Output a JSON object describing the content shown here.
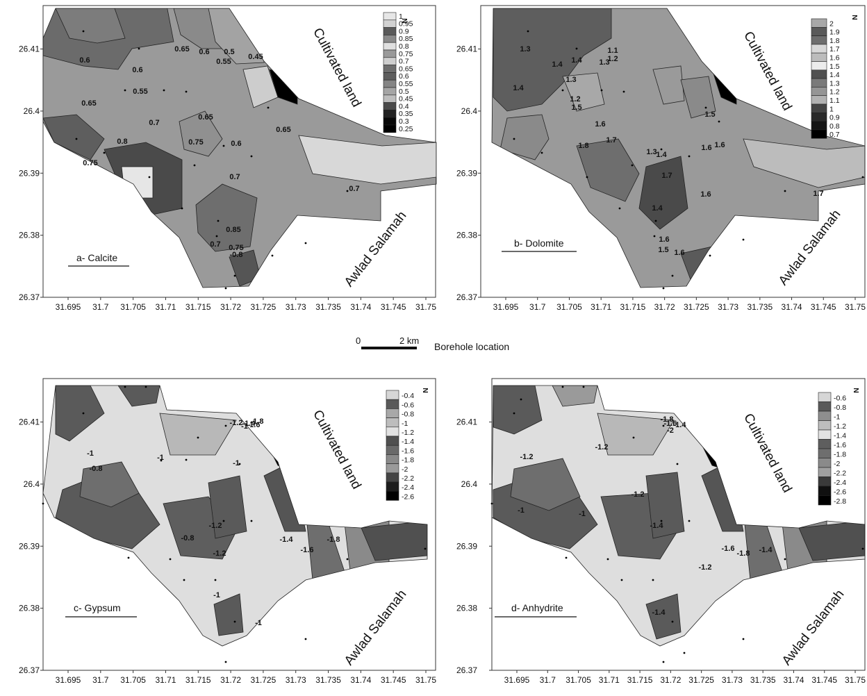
{
  "panels": [
    {
      "title": "a- Calcite",
      "legend": [
        "1",
        "0.95",
        "0.9",
        "0.85",
        "0.8",
        "0.75",
        "0.7",
        "0.65",
        "0.6",
        "0.55",
        "0.5",
        "0.45",
        "0.4",
        "0.35",
        "0.3",
        "0.25"
      ],
      "legend_colors": [
        "#e6e6e6",
        "#d2d2d2",
        "#5a5a5a",
        "#8a8a8a",
        "#e0e0e0",
        "#9a9a9a",
        "#cfcfcf",
        "#6e6e6e",
        "#5e5e5e",
        "#858585",
        "#a5a5a5",
        "#bdbdbd",
        "#4a4a4a",
        "#222222",
        "#080808",
        "#000000"
      ],
      "contour_labels": [
        "0.6",
        "0.6",
        "0.55",
        "0.65",
        "0.65",
        "0.6",
        "0.5",
        "0.55",
        "0.45",
        "0.7",
        "0.8",
        "0.75",
        "0.65",
        "0.6",
        "0.7",
        "0.65",
        "0.75",
        "0.7",
        "0.85",
        "0.7",
        "0.75",
        "-0.8"
      ]
    },
    {
      "title": "b- Dolomite",
      "legend": [
        "2",
        "1.9",
        "1.8",
        "1.7",
        "1.6",
        "1.5",
        "1.4",
        "1.3",
        "1.2",
        "1.1",
        "1",
        "0.9",
        "0.8",
        "0.7"
      ],
      "legend_colors": [
        "#a8a8a8",
        "#5a5a5a",
        "#6e6e6e",
        "#d8d8d8",
        "#bcbcbc",
        "#ececec",
        "#505050",
        "#7a7a7a",
        "#959595",
        "#b2b2b2",
        "#444444",
        "#2a2a2a",
        "#151515",
        "#000000"
      ],
      "contour_labels": [
        "1.3",
        "1.4",
        "1.3",
        "1.4",
        "1.2",
        "1.4",
        "1.3",
        "1.2",
        "1.1",
        "1.5",
        "1.6",
        "1.8",
        "1.7",
        "1.6",
        "1.4",
        "1.3",
        "1.6",
        "1.5",
        "1.7",
        "1.6",
        "1.4",
        "1.6",
        "1.5",
        "1.6",
        "1.7"
      ]
    },
    {
      "title": "c- Gypsum",
      "legend": [
        "-0.4",
        "-0.6",
        "-0.8",
        "-1",
        "-1.2",
        "-1.4",
        "-1.6",
        "-1.8",
        "-2",
        "-2.2",
        "-2.4",
        "-2.6"
      ],
      "legend_colors": [
        "#d6d6d6",
        "#5a5a5a",
        "#a8a8a8",
        "#bdbdbd",
        "#e2e2e2",
        "#505050",
        "#6a6a6a",
        "#8a8a8a",
        "#9a9a9a",
        "#444444",
        "#1c1c1c",
        "#000000"
      ],
      "contour_labels": [
        "-1",
        "-0.8",
        "-1",
        "-1",
        "-1.2",
        "-1.4",
        "-1.6",
        "-1.8",
        "-1.2",
        "-1",
        "-0.8",
        "-1.2",
        "-1.4",
        "-1.6",
        "-1.8",
        "-1",
        "-1"
      ]
    },
    {
      "title": "d- Anhydrite",
      "legend": [
        "-0.6",
        "-0.8",
        "-1",
        "-1.2",
        "-1.4",
        "-1.6",
        "-1.8",
        "-2",
        "-2.2",
        "-2.4",
        "-2.6",
        "-2.8"
      ],
      "legend_colors": [
        "#d6d6d6",
        "#5a5a5a",
        "#8e8e8e",
        "#bdbdbd",
        "#e2e2e2",
        "#5e5e5e",
        "#6e6e6e",
        "#8a8a8a",
        "#a0a0a0",
        "#3a3a3a",
        "#101010",
        "#000000"
      ],
      "contour_labels": [
        "-1.2",
        "-1",
        "-1.2",
        "-1",
        "-1.2",
        "-1.4",
        "-1.4",
        "-1.6",
        "-1.8",
        "-1.4",
        "-1.6",
        "-1.8",
        "-2",
        "-1.2",
        "-1.4"
      ]
    }
  ],
  "y_ticks": [
    "26.41",
    "26.4",
    "26.39",
    "26.38",
    "26.37"
  ],
  "x_ticks": [
    "31.695",
    "31.7",
    "31.705",
    "31.71",
    "31.715",
    "31.72",
    "31.725",
    "31.73",
    "31.735",
    "31.74",
    "31.745",
    "31.75"
  ],
  "region_labels": {
    "cultivated": "Cultivated land",
    "awlad": "Awlad Salamah"
  },
  "north_symbol": "N",
  "scale_bar": {
    "start": "0",
    "end": "2 km"
  },
  "borehole_label": "Borehole location"
}
